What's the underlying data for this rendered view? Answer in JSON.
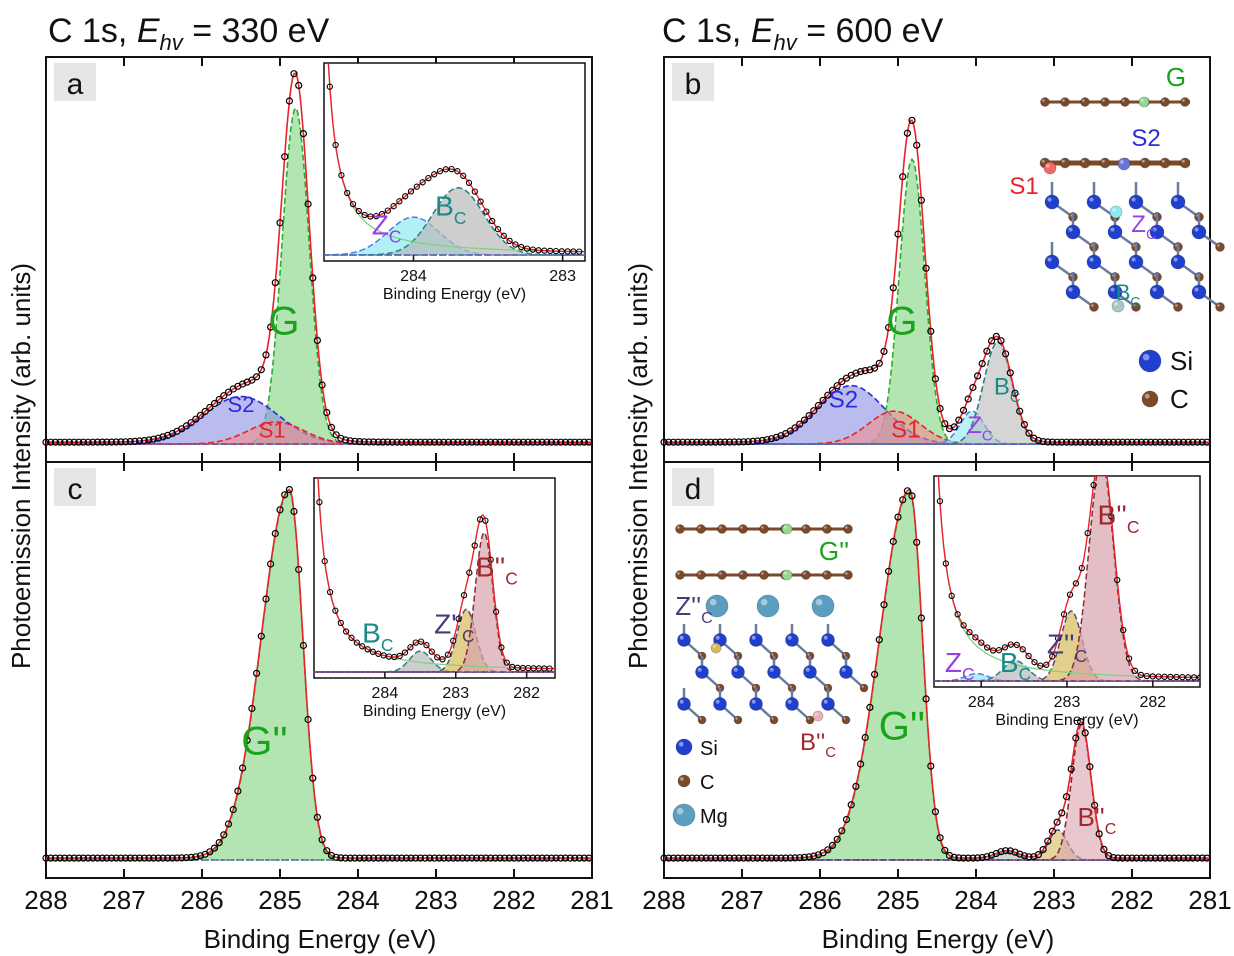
{
  "figure": {
    "y_label": "Photoemission Intensity (arb. units)",
    "x_label": "Binding Energy (eV)",
    "left_header": {
      "prefix": "C 1s, ",
      "E": "E",
      "sub": "hv",
      "suffix": " = 330 eV"
    },
    "right_header": {
      "prefix": "C 1s, ",
      "E": "E",
      "sub": "hv",
      "suffix": " = 600 eV"
    }
  },
  "colors": {
    "G": "#7fd37f",
    "S2": "#8a8fe0",
    "S1": "#f08e8e",
    "Zc": "#8fe9f2",
    "Bc": "#b9b9b9",
    "Bpp": "#d9a3ad",
    "Zpp": "#d6bb58",
    "fit": "#e8232a",
    "data": "#000000",
    "label_G": "#1aa31a",
    "label_S2": "#2a2adf",
    "label_S1": "#e8232a",
    "label_Z": "#9a3ee8",
    "label_B": "#1a8a8a",
    "label_Bpp": "#a0282e",
    "label_Zpp": "#4a3a7a",
    "si_atom": "#1f3fcf",
    "c_atom": "#7a4a2a",
    "mg_atom": "#5a9ec0"
  },
  "chart_data": [
    {
      "panel": "a",
      "type": "line",
      "xlim": [
        288,
        281
      ],
      "x_reversed": true,
      "x_ticks": [
        288,
        287,
        286,
        285,
        284,
        283,
        282,
        281
      ],
      "show_x_tick_labels": false,
      "components": [
        {
          "name": "G",
          "center": 284.8,
          "height": 0.92,
          "width": 0.36
        },
        {
          "name": "S2",
          "center": 285.5,
          "height": 0.13,
          "width": 1.0
        },
        {
          "name": "S1",
          "center": 285.05,
          "height": 0.06,
          "width": 0.75
        }
      ],
      "labels": [
        {
          "text": "G",
          "x": 284.95,
          "y": 0.3,
          "color": "label_G",
          "size": 40
        },
        {
          "text": "S2",
          "x": 285.5,
          "y": 0.087,
          "color": "label_S2",
          "size": 22
        },
        {
          "text": "S1",
          "x": 285.1,
          "y": 0.018,
          "color": "label_S1",
          "size": 22
        }
      ],
      "inset": {
        "x_label": "Binding Energy (eV)",
        "xlim": [
          284.6,
          282.85
        ],
        "x_ticks": [
          284,
          283
        ],
        "x_tick_labels": [
          "284",
          "283"
        ],
        "ylim": [
          0,
          1.08
        ],
        "components": [
          {
            "name": "Z",
            "sub": "C",
            "center": 284.0,
            "height": 0.22,
            "width": 0.36
          },
          {
            "name": "B",
            "sub": "C",
            "center": 283.7,
            "height": 0.39,
            "width": 0.36
          }
        ],
        "labels": [
          {
            "text": "Z",
            "sub": "C",
            "x": 284.18,
            "y": 0.12,
            "color": "label_Z"
          },
          {
            "text": "B",
            "sub": "C",
            "x": 283.75,
            "y": 0.23,
            "color": "label_B"
          }
        ]
      }
    },
    {
      "panel": "b",
      "type": "line",
      "xlim": [
        288,
        281
      ],
      "x_reversed": true,
      "x_ticks": [
        288,
        287,
        286,
        285,
        284,
        283,
        282,
        281
      ],
      "show_x_tick_labels": false,
      "components": [
        {
          "name": "G",
          "center": 284.82,
          "height": 0.78,
          "width": 0.34
        },
        {
          "name": "S2",
          "center": 285.6,
          "height": 0.16,
          "width": 0.9
        },
        {
          "name": "S1",
          "center": 285.05,
          "height": 0.09,
          "width": 0.7
        },
        {
          "name": "Zc",
          "center": 284.05,
          "height": 0.09,
          "width": 0.32
        },
        {
          "name": "Bc",
          "center": 283.72,
          "height": 0.28,
          "width": 0.38
        }
      ],
      "labels": [
        {
          "text": "G",
          "x": 284.95,
          "y": 0.3,
          "color": "label_G",
          "size": 40
        },
        {
          "text": "S2",
          "x": 285.7,
          "y": 0.1,
          "color": "label_S2",
          "size": 24
        },
        {
          "text": "S1",
          "x": 284.9,
          "y": 0.018,
          "color": "label_S1",
          "size": 24
        },
        {
          "text": "Z",
          "sub": "C",
          "x": 283.95,
          "y": 0.03,
          "color": "label_Z",
          "size": 24
        },
        {
          "text": "B",
          "sub": "C",
          "x": 283.6,
          "y": 0.135,
          "color": "label_B",
          "size": 24
        }
      ],
      "legend": [
        {
          "text": "Si",
          "atom": "si_atom"
        },
        {
          "text": "C",
          "atom": "c_atom"
        }
      ],
      "structure_labels": [
        {
          "text": "G",
          "color": "label_G"
        },
        {
          "text": "S2",
          "color": "label_S2"
        },
        {
          "text": "S1",
          "color": "label_S1"
        },
        {
          "text": "Z",
          "sub": "C",
          "color": "label_Z"
        },
        {
          "text": "B",
          "sub": "C",
          "color": "label_B"
        }
      ]
    },
    {
      "panel": "c",
      "type": "line",
      "xlim": [
        288,
        281
      ],
      "x_reversed": true,
      "x_ticks": [
        288,
        287,
        286,
        285,
        284,
        283,
        282,
        281
      ],
      "x_tick_labels": [
        "288",
        "287",
        "286",
        "285",
        "284",
        "283",
        "282",
        "281"
      ],
      "components": [
        {
          "name": "G''",
          "center": 284.88,
          "height": 0.98,
          "width": 0.36,
          "left_width": 0.75
        }
      ],
      "labels": [
        {
          "text": "G''",
          "x": 285.2,
          "y": 0.28,
          "color": "label_G",
          "size": 40
        }
      ],
      "inset": {
        "x_label": "Binding Energy (eV)",
        "xlim": [
          285.0,
          281.6
        ],
        "x_ticks": [
          284,
          283,
          282
        ],
        "x_tick_labels": [
          "284",
          "283",
          "282"
        ],
        "ylim": [
          0,
          1.08
        ],
        "components": [
          {
            "name": "B",
            "sub": "C",
            "center": 283.5,
            "height": 0.12,
            "width": 0.32
          },
          {
            "name": "Z''",
            "sub": "C",
            "center": 282.85,
            "height": 0.36,
            "width": 0.28
          },
          {
            "name": "B''",
            "sub": "C",
            "center": 282.6,
            "height": 0.8,
            "width": 0.26
          }
        ],
        "labels": [
          {
            "text": "B",
            "sub": "C",
            "x": 284.1,
            "y": 0.17,
            "color": "label_B"
          },
          {
            "text": "Z''",
            "sub": "C",
            "x": 283.02,
            "y": 0.22,
            "color": "label_Zpp"
          },
          {
            "text": "B''",
            "sub": "C",
            "x": 282.42,
            "y": 0.55,
            "color": "label_Bpp"
          }
        ]
      }
    },
    {
      "panel": "d",
      "type": "line",
      "xlim": [
        288,
        281
      ],
      "x_reversed": true,
      "x_ticks": [
        288,
        287,
        286,
        285,
        284,
        283,
        282,
        281
      ],
      "x_tick_labels": [
        "288",
        "287",
        "286",
        "285",
        "284",
        "283",
        "282",
        "281"
      ],
      "components": [
        {
          "name": "G''",
          "center": 284.85,
          "height": 0.98,
          "width": 0.34,
          "left_width": 0.8
        },
        {
          "name": "Bc",
          "center": 283.6,
          "height": 0.02,
          "width": 0.3
        },
        {
          "name": "Z''c",
          "center": 282.95,
          "height": 0.08,
          "width": 0.25
        },
        {
          "name": "B''c",
          "center": 282.65,
          "height": 0.36,
          "width": 0.26
        }
      ],
      "labels": [
        {
          "text": "G''",
          "x": 284.95,
          "y": 0.32,
          "color": "label_G",
          "size": 40
        },
        {
          "text": "B''",
          "sub": "C",
          "x": 282.45,
          "y": 0.09,
          "color": "label_Bpp",
          "size": 26
        }
      ],
      "legend": [
        {
          "text": "Si",
          "atom": "si_atom"
        },
        {
          "text": "C",
          "atom": "c_atom"
        },
        {
          "text": "Mg",
          "atom": "mg_atom"
        }
      ],
      "structure_labels": [
        {
          "text": "G''",
          "color": "label_G"
        },
        {
          "text": "Z''",
          "sub": "C",
          "color": "label_Zpp"
        },
        {
          "text": "B''",
          "sub": "C",
          "color": "label_Bpp"
        }
      ],
      "inset": {
        "x_label": "Binding Energy (eV)",
        "xlim": [
          284.55,
          281.45
        ],
        "x_ticks": [
          284,
          283,
          282
        ],
        "x_tick_labels": [
          "284",
          "283",
          "282"
        ],
        "ylim": [
          0,
          1.08
        ],
        "components": [
          {
            "name": "Z",
            "sub": "C",
            "center": 284.05,
            "height": 0.04,
            "width": 0.28
          },
          {
            "name": "B",
            "sub": "C",
            "center": 283.6,
            "height": 0.11,
            "width": 0.3
          },
          {
            "name": "Z''",
            "sub": "C",
            "center": 282.95,
            "height": 0.38,
            "width": 0.26
          },
          {
            "name": "B''",
            "sub": "C",
            "center": 282.6,
            "height": 1.2,
            "width": 0.3
          }
        ],
        "labels": [
          {
            "text": "Z",
            "sub": "C",
            "x": 284.25,
            "y": 0.05,
            "color": "label_Z"
          },
          {
            "text": "B",
            "sub": "C",
            "x": 283.6,
            "y": 0.05,
            "color": "label_B"
          },
          {
            "text": "Z''",
            "sub": "C",
            "x": 283.0,
            "y": 0.15,
            "color": "label_Zpp"
          },
          {
            "text": "B''",
            "sub": "C",
            "x": 282.4,
            "y": 0.85,
            "color": "label_Bpp"
          }
        ]
      }
    }
  ]
}
